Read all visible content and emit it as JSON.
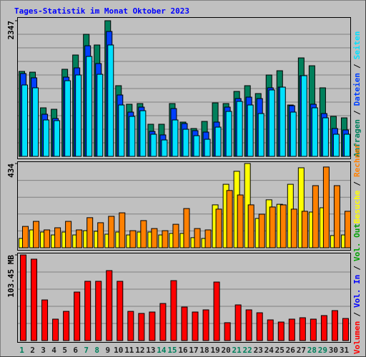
{
  "chart_data": {
    "type": "bar",
    "title": "Tages-Statistik im Monat Oktober 2023",
    "categories": [
      "1",
      "2",
      "3",
      "4",
      "5",
      "6",
      "7",
      "8",
      "9",
      "10",
      "11",
      "12",
      "13",
      "14",
      "15",
      "16",
      "17",
      "18",
      "19",
      "20",
      "21",
      "22",
      "23",
      "24",
      "25",
      "26",
      "27",
      "28",
      "29",
      "30",
      "31"
    ],
    "category_colors": [
      "#00805c",
      "#202020",
      "#202020",
      "#202020",
      "#202020",
      "#202020",
      "#00805c",
      "#00805c",
      "#202020",
      "#202020",
      "#202020",
      "#202020",
      "#202020",
      "#00805c",
      "#00805c",
      "#202020",
      "#202020",
      "#202020",
      "#202020",
      "#202020",
      "#00805c",
      "#00805c",
      "#202020",
      "#202020",
      "#202020",
      "#202020",
      "#202020",
      "#00805c",
      "#00805c",
      "#202020",
      "#202020"
    ],
    "legend_separator": "/",
    "panels": [
      {
        "ylim": [
          0,
          2347
        ],
        "yticks": [
          2347
        ],
        "series": [
          {
            "name": "Anfragen",
            "color": "#00805c",
            "values": [
              1470,
              1457,
              840,
              815,
              1507,
              1754,
              2112,
              1927,
              2347,
              1223,
              902,
              914,
              556,
              556,
              914,
              593,
              482,
              605,
              926,
              914,
              1124,
              1223,
              1087,
              1408,
              1482,
              889,
              1704,
              1568,
              1186,
              692,
              667
            ]
          },
          {
            "name": "Dateien",
            "color": "#0040ff",
            "values": [
              1433,
              1359,
              729,
              655,
              1371,
              1531,
              1914,
              1606,
              2161,
              1062,
              766,
              852,
              432,
              371,
              827,
              568,
              445,
              420,
              593,
              852,
              1000,
              1025,
              1000,
              1186,
              1198,
              877,
              1396,
              902,
              741,
              482,
              457
            ]
          },
          {
            "name": "Seiten",
            "color": "#00e0ff",
            "values": [
              1235,
              1186,
              630,
              618,
              1309,
              1408,
              1729,
              1420,
              1927,
              889,
              692,
              790,
              383,
              284,
              630,
              469,
              358,
              296,
              506,
              778,
              951,
              889,
              741,
              1149,
              1198,
              766,
              1396,
              840,
              667,
              383,
              383
            ]
          }
        ]
      },
      {
        "ylim": [
          0,
          434
        ],
        "yticks": [
          434
        ],
        "series": [
          {
            "name": "Besuche",
            "color": "#ffff00",
            "values": [
              48,
              92,
              81,
              66,
              81,
              66,
              88,
              85,
              70,
              81,
              66,
              81,
              81,
              66,
              74,
              74,
              52,
              48,
              221,
              327,
              394,
              434,
              151,
              247,
              224,
              327,
              412,
              184,
              206,
              63,
              66
            ]
          },
          {
            "name": "Rechner",
            "color": "#ff8000",
            "values": [
              110,
              136,
              92,
              103,
              136,
              92,
              155,
              129,
              162,
              180,
              88,
              140,
              99,
              88,
              121,
              202,
              99,
              92,
              199,
              295,
              272,
              221,
              173,
              210,
              221,
              199,
              188,
              320,
              416,
              320,
              188
            ]
          }
        ]
      },
      {
        "ylim": [
          0,
          103.45
        ],
        "yticks": [
          {
            "value": 103.45,
            "label": "103.45 MB"
          }
        ],
        "series": [
          {
            "name": "Volumen",
            "color": "#ff0000",
            "values": [
              103.45,
              98.3,
              49.1,
              25.9,
              35.3,
              58.6,
              71.6,
              71.6,
              84.5,
              71.6,
              35.3,
              32.8,
              34.5,
              44.8,
              72.4,
              40.5,
              34.5,
              37.1,
              70.7,
              21.6,
              43.1,
              37.1,
              33.6,
              25.0,
              22.4,
              25.9,
              27.6,
              25.9,
              30.2,
              36.2,
              26.7
            ]
          }
        ],
        "extra_legend": [
          {
            "name": "Vol. In",
            "color": "#0000ff"
          },
          {
            "name": "Vol. Out",
            "color": "#00a000"
          }
        ]
      }
    ]
  }
}
